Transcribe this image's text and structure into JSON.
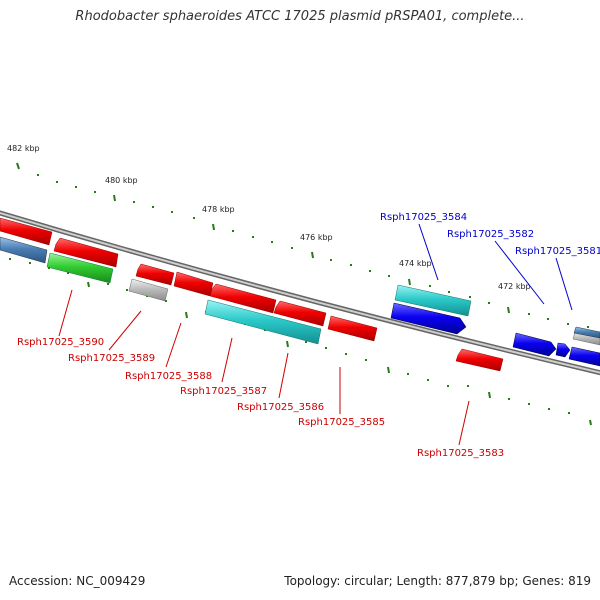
{
  "title": "Rhodobacter sphaeroides ATCC 17025 plasmid pRSPA01, complete...",
  "footer": {
    "accession": "Accession: NC_009429",
    "summary": "Topology: circular; Length: 877,879 bp; Genes: 819"
  },
  "scale_labels": [
    "482 kbp",
    "480 kbp",
    "478 kbp",
    "476 kbp",
    "474 kbp",
    "472 kbp"
  ],
  "genes": [
    {
      "id": "g1",
      "label": "",
      "color": "red"
    },
    {
      "id": "g2",
      "label": "",
      "color": "red"
    },
    {
      "id": "g3",
      "label": "",
      "color": "steelblue"
    },
    {
      "id": "g3590",
      "label": "Rsph17025_3590",
      "color": "green"
    },
    {
      "id": "g3589",
      "label": "Rsph17025_3589",
      "color": "gray"
    },
    {
      "id": "g3588",
      "label": "Rsph17025_3588",
      "color": "red"
    },
    {
      "id": "g3587",
      "label": "Rsph17025_3587",
      "color": "cyan"
    },
    {
      "id": "g3586",
      "label": "Rsph17025_3586",
      "color": "red"
    },
    {
      "id": "g3585",
      "label": "Rsph17025_3585",
      "color": "red"
    },
    {
      "id": "g3584",
      "label": "Rsph17025_3584",
      "color": "cyan"
    },
    {
      "id": "g3583",
      "label": "Rsph17025_3583",
      "color": "red"
    },
    {
      "id": "g3582",
      "label": "Rsph17025_3582",
      "color": "blue"
    },
    {
      "id": "g3581",
      "label": "Rsph17025_3581",
      "color": "blue"
    }
  ],
  "colors": {
    "red": "#e8000b",
    "cyan": "#27c6c8",
    "blue": "#0a00e8",
    "green": "#2bcb2b",
    "gray": "#b3b3b3",
    "steelblue": "#4a7fb5",
    "forward_label": "#0000cc",
    "reverse_label": "#cc0000",
    "tick": "#2a7a1a"
  }
}
